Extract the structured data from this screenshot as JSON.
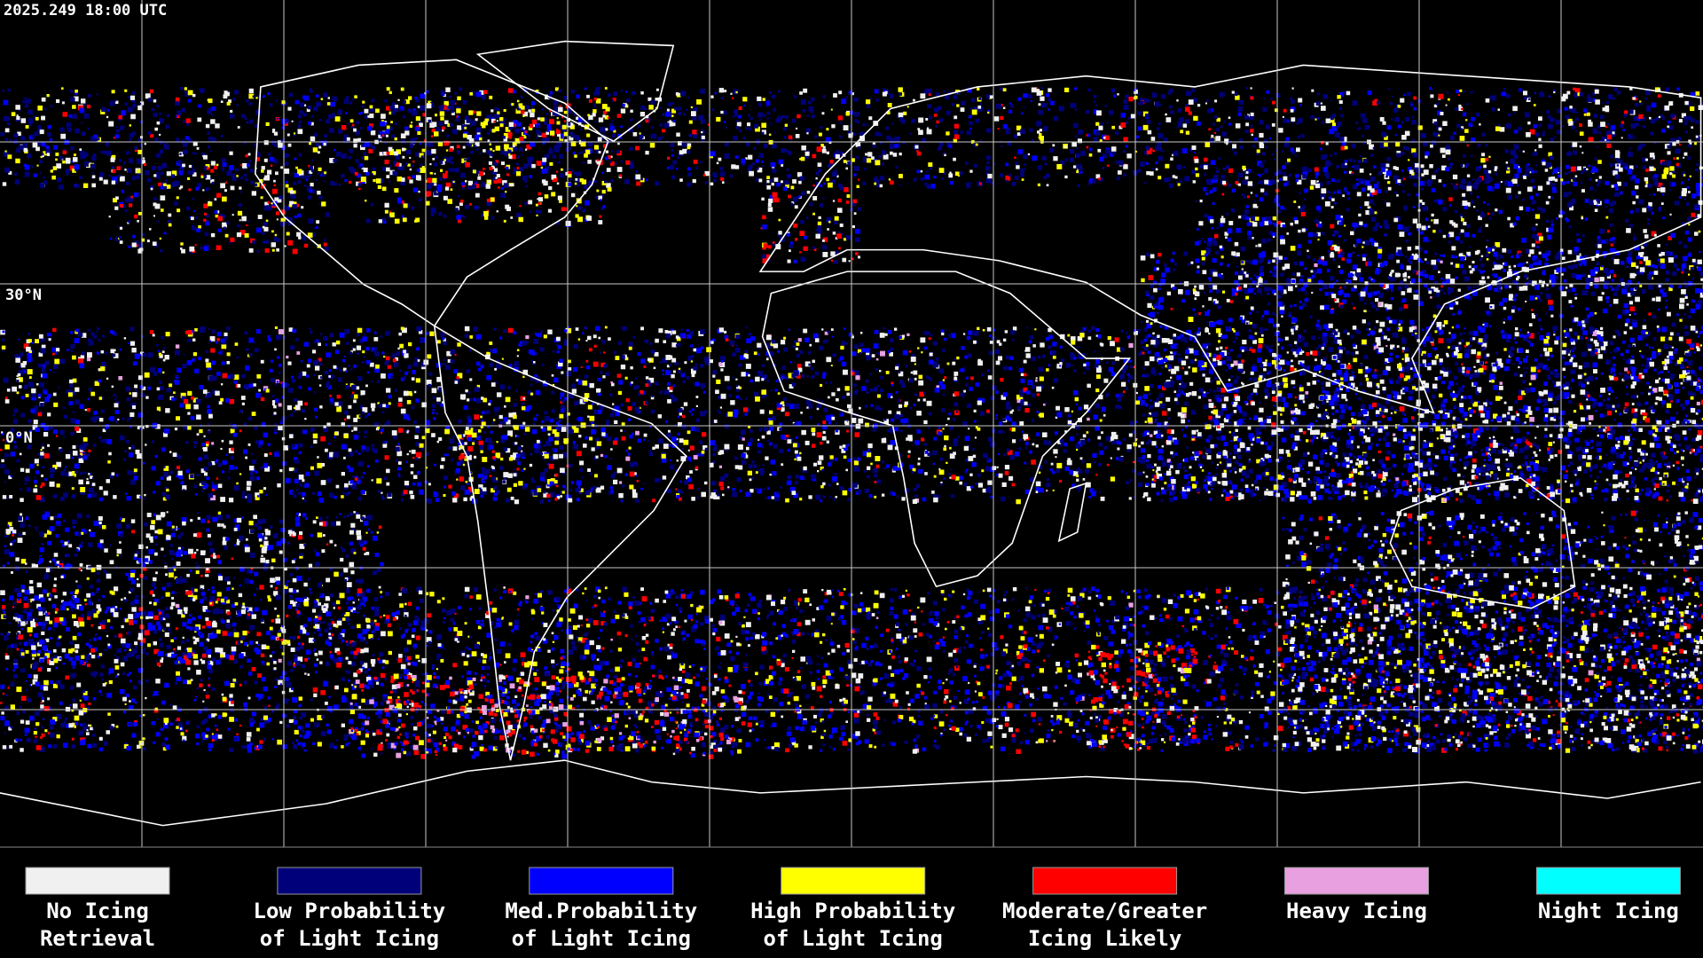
{
  "header": {
    "timestamp": "2025.249 18:00 UTC"
  },
  "map": {
    "lat_labels": [
      "30°N",
      "0°N"
    ]
  },
  "legend": [
    {
      "label": [
        "No Icing",
        "Retrieval"
      ],
      "color": "#f0f0f0"
    },
    {
      "label": [
        "Low Probability",
        "of Light Icing"
      ],
      "color": "#00007a"
    },
    {
      "label": [
        "Med.Probability",
        "of Light Icing"
      ],
      "color": "#0000ff"
    },
    {
      "label": [
        "High Probability",
        "of Light Icing"
      ],
      "color": "#ffff00"
    },
    {
      "label": [
        "Moderate/Greater",
        "Icing Likely"
      ],
      "color": "#ff0000"
    },
    {
      "label": [
        "Heavy Icing"
      ],
      "color": "#e8a0e0"
    },
    {
      "label": [
        "Night Icing"
      ],
      "color": "#00ffff"
    }
  ]
}
